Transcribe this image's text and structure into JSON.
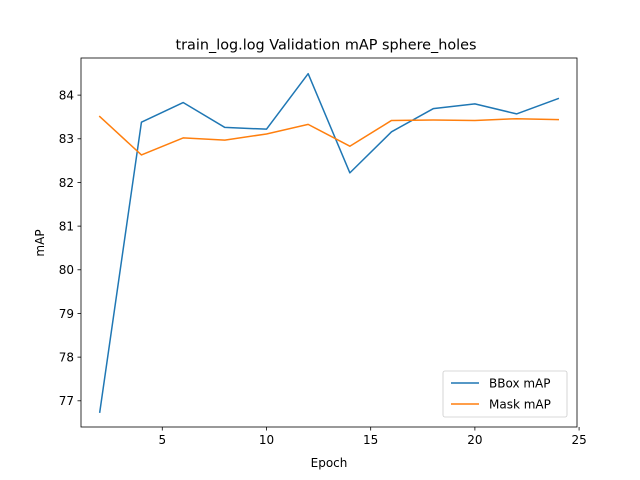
{
  "chart_data": {
    "type": "line",
    "title": "train_log.log Validation mAP sphere_holes",
    "xlabel": "Epoch",
    "ylabel": "mAP",
    "xlim": [
      1.1,
      24.9
    ],
    "ylim": [
      76.4,
      84.85
    ],
    "xticks": [
      5,
      10,
      15,
      20,
      25
    ],
    "yticks": [
      77,
      78,
      79,
      80,
      81,
      82,
      83,
      84
    ],
    "grid": false,
    "legend_position": "lower-right",
    "x": [
      2,
      4,
      6,
      8,
      10,
      12,
      14,
      16,
      18,
      20,
      22,
      24
    ],
    "series": [
      {
        "name": "BBox mAP",
        "color": "#1f77b4",
        "values": [
          76.74,
          83.38,
          83.83,
          83.26,
          83.22,
          84.49,
          82.22,
          83.16,
          83.69,
          83.8,
          83.57,
          83.92
        ]
      },
      {
        "name": "Mask mAP",
        "color": "#ff7f0e",
        "values": [
          83.51,
          82.63,
          83.02,
          82.97,
          83.11,
          83.33,
          82.83,
          83.42,
          83.43,
          83.42,
          83.46,
          83.44
        ]
      }
    ]
  }
}
